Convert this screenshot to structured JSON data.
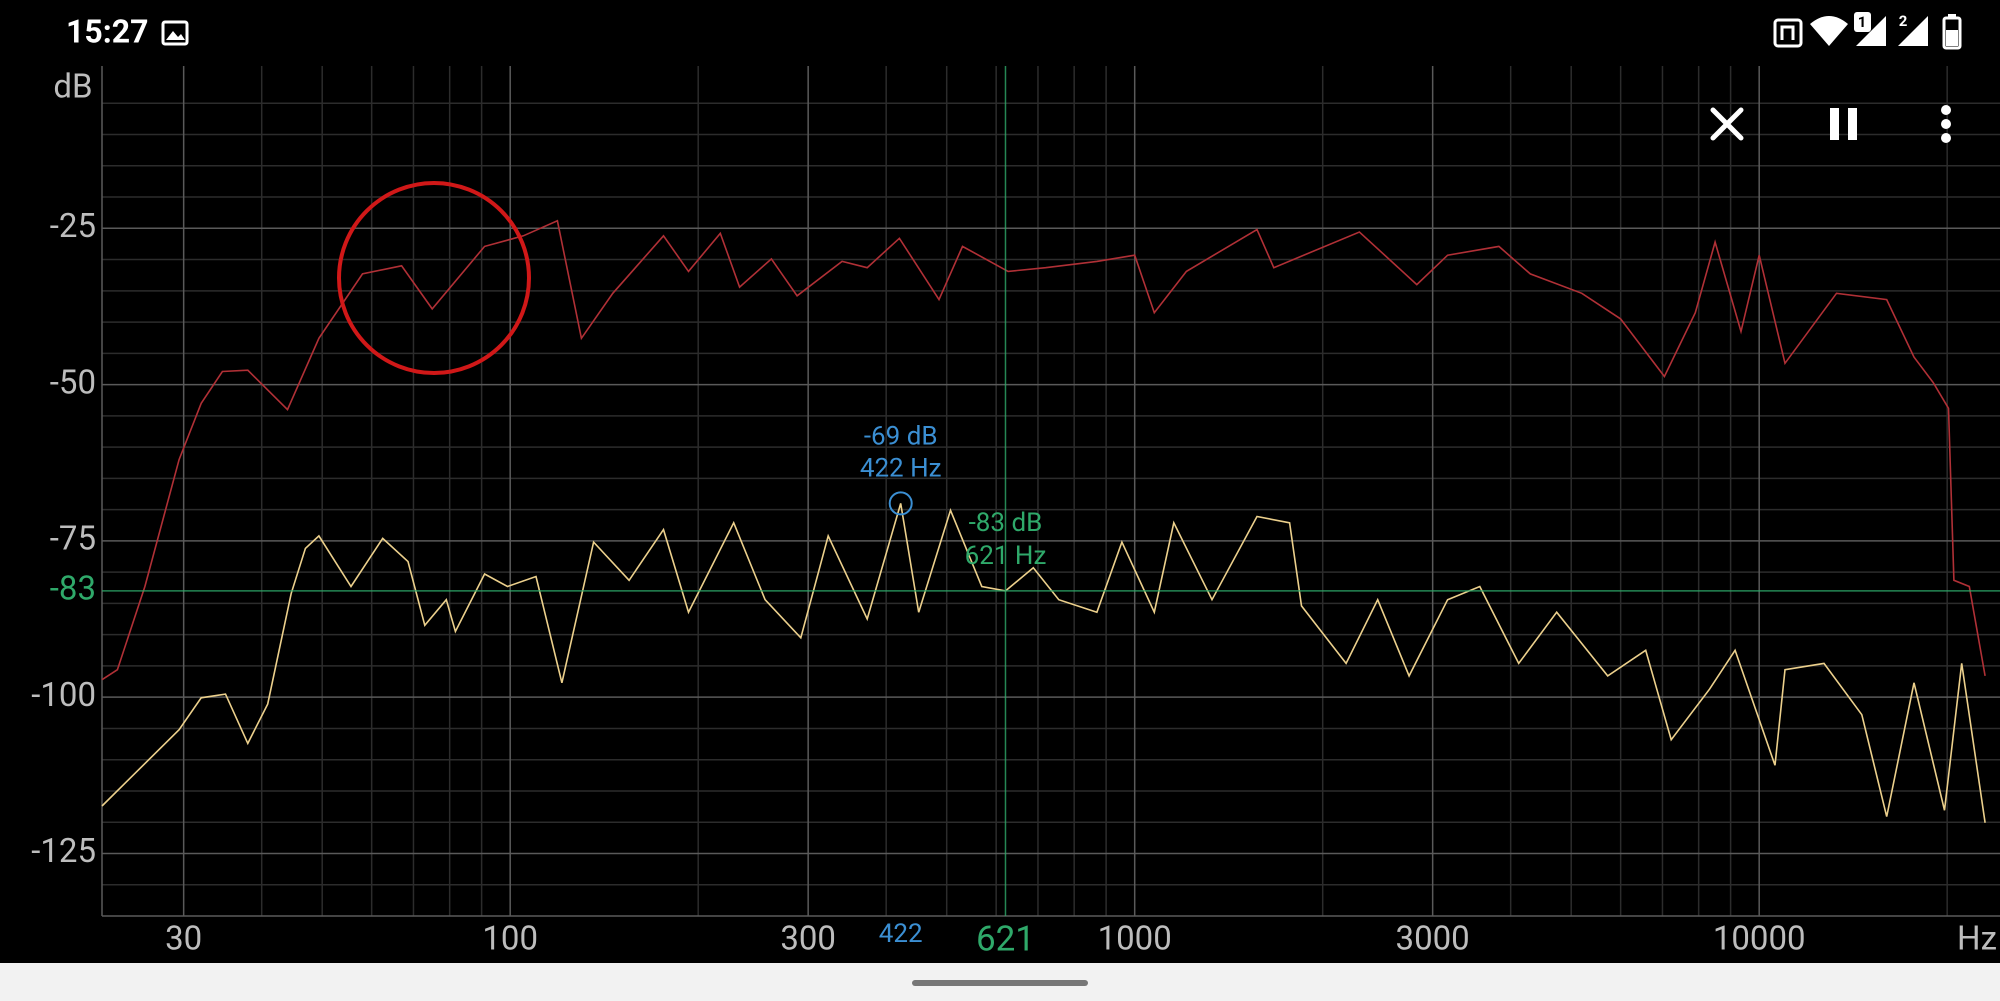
{
  "status_bar": {
    "time": "15:27",
    "sim_badges": [
      "1",
      "2"
    ]
  },
  "chart_data": {
    "type": "line",
    "y_label": "dB",
    "x_label": "Hz",
    "log_x": true,
    "grid": true,
    "xlim": [
      22.2,
      24300
    ],
    "ylim": [
      -135,
      0
    ],
    "xticks": [
      30,
      100,
      300,
      1000,
      3000,
      10000
    ],
    "xminor": [
      40,
      50,
      60,
      70,
      80,
      90,
      200,
      400,
      500,
      600,
      700,
      800,
      900,
      2000,
      4000,
      5000,
      6000,
      7000,
      8000,
      9000,
      20000
    ],
    "yticks": [
      -25,
      -50,
      -75,
      -100,
      -125
    ],
    "yminor": [
      -5,
      -10,
      -15,
      -20,
      -30,
      -35,
      -40,
      -45,
      -55,
      -60,
      -65,
      -70,
      -80,
      -85,
      -90,
      -95,
      -105,
      -110,
      -115,
      -120,
      -130
    ],
    "series": [
      {
        "color": "#b03036",
        "x": [
          22.2,
          23.5,
          26,
          29.5,
          32,
          34.6,
          38,
          44,
          49.4,
          58,
          67,
          75,
          91,
          105,
          119,
          130,
          146,
          176,
          193,
          217,
          233,
          262,
          288,
          340,
          373,
          420,
          486,
          530,
          627,
          720,
          870,
          1000,
          1075,
          1210,
          1570,
          1670,
          2290,
          2830,
          3170,
          3830,
          4300,
          5200,
          6000,
          7050,
          7900,
          8500,
          9350,
          10000,
          11000,
          13300,
          16000,
          17700,
          19000,
          20100,
          20500,
          21700,
          23000
        ],
        "values": [
          -97.2,
          -95.6,
          -82.3,
          -62,
          -53,
          -47.9,
          -47.7,
          -54,
          -42.6,
          -32.3,
          -31,
          -37.9,
          -27.9,
          -26.2,
          -23.8,
          -42.6,
          -35.4,
          -26.2,
          -31.9,
          -25.8,
          -34.4,
          -29.9,
          -35.8,
          -30.3,
          -31.3,
          -26.6,
          -36.4,
          -27.9,
          -31.9,
          -31.3,
          -30.3,
          -29.3,
          -38.5,
          -31.9,
          -25.2,
          -31.3,
          -25.6,
          -34,
          -29.3,
          -27.9,
          -32.3,
          -35.4,
          -39.5,
          -48.7,
          -38.5,
          -27.2,
          -41.5,
          -29.3,
          -46.6,
          -35.4,
          -36.4,
          -45.6,
          -49.7,
          -53.8,
          -81.3,
          -82.3,
          -96.6
        ]
      },
      {
        "color": "#ecd08c",
        "x": [
          22.2,
          29.5,
          32,
          35,
          38,
          40.9,
          44.6,
          47,
          49.4,
          55.6,
          62.5,
          68.6,
          73,
          79,
          81.7,
          91,
          99,
          110,
          121,
          136,
          155,
          176,
          193,
          228,
          256,
          292,
          323,
          373,
          422,
          451,
          507,
          569,
          621,
          688,
          756,
          870,
          954,
          1075,
          1155,
          1330,
          1570,
          1770,
          1850,
          2180,
          2450,
          2750,
          3170,
          3570,
          4120,
          4740,
          5720,
          6580,
          7230,
          8330,
          9150,
          10600,
          11000,
          12700,
          14600,
          16000,
          17700,
          19800,
          21100,
          23000
        ],
        "values": [
          -117.4,
          -105.2,
          -100.1,
          -99.5,
          -107.4,
          -101.1,
          -83.4,
          -76.2,
          -74.2,
          -82.3,
          -74.6,
          -78.3,
          -88.5,
          -84.4,
          -89.5,
          -80.3,
          -82.3,
          -80.7,
          -97.7,
          -75.2,
          -81.3,
          -73.2,
          -86.4,
          -72.1,
          -84.4,
          -90.5,
          -74.2,
          -87.5,
          -69,
          -86.4,
          -70.1,
          -82.3,
          -83,
          -79.3,
          -84.4,
          -86.4,
          -75.2,
          -86.4,
          -72.1,
          -84.4,
          -71.1,
          -72.1,
          -85.4,
          -94.6,
          -84.4,
          -96.6,
          -84.4,
          -82.3,
          -94.6,
          -86.4,
          -96.6,
          -92.5,
          -106.8,
          -98.7,
          -92.5,
          -110.9,
          -95.6,
          -94.6,
          -102.8,
          -119.1,
          -97.7,
          -118.1,
          -94.6,
          -120.1
        ]
      }
    ],
    "peak": {
      "x": 422,
      "y": -69,
      "labels": [
        "-69 dB",
        "422 Hz"
      ],
      "color": "#3b8fd3"
    },
    "cursor": {
      "x": 621,
      "y": -83,
      "labels": [
        "-83 dB",
        "621 Hz"
      ],
      "color": "#2fa96a"
    }
  }
}
